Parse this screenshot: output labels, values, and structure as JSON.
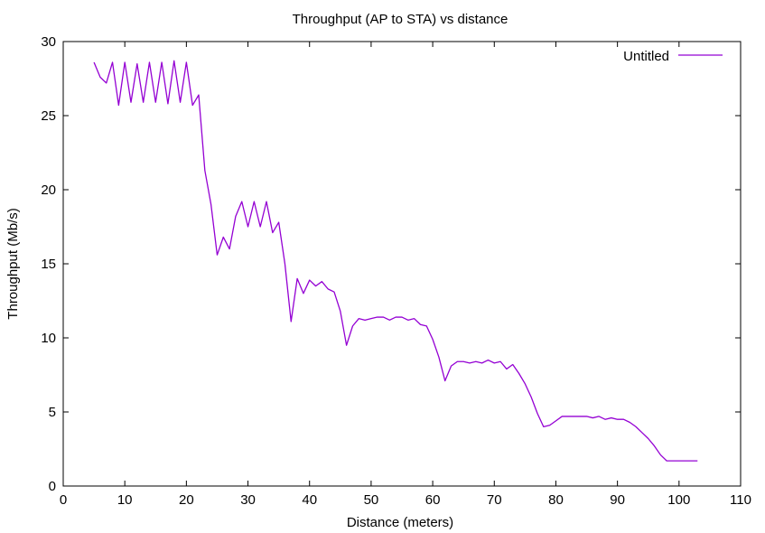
{
  "chart_data": {
    "type": "line",
    "title": "Throughput (AP to STA) vs distance",
    "xlabel": "Distance (meters)",
    "ylabel": "Throughput (Mb/s)",
    "xlim": [
      0,
      110
    ],
    "ylim": [
      0,
      30
    ],
    "xticks": [
      0,
      10,
      20,
      30,
      40,
      50,
      60,
      70,
      80,
      90,
      100,
      110
    ],
    "yticks": [
      0,
      5,
      10,
      15,
      20,
      25,
      30
    ],
    "grid": false,
    "legend_position": "top-right",
    "series": [
      {
        "name": "Untitled",
        "color": "#9400d3",
        "x": [
          5,
          6,
          7,
          8,
          9,
          10,
          11,
          12,
          13,
          14,
          15,
          16,
          17,
          18,
          19,
          20,
          21,
          22,
          23,
          24,
          25,
          26,
          27,
          28,
          29,
          30,
          31,
          32,
          33,
          34,
          35,
          36,
          37,
          38,
          39,
          40,
          41,
          42,
          43,
          44,
          45,
          46,
          47,
          48,
          49,
          50,
          51,
          52,
          53,
          54,
          55,
          56,
          57,
          58,
          59,
          60,
          61,
          62,
          63,
          64,
          65,
          66,
          67,
          68,
          69,
          70,
          71,
          72,
          73,
          74,
          75,
          76,
          77,
          78,
          79,
          80,
          81,
          82,
          83,
          84,
          85,
          86,
          87,
          88,
          89,
          90,
          91,
          92,
          93,
          94,
          95,
          96,
          97,
          98,
          99,
          100,
          101,
          102,
          103
        ],
        "y": [
          28.6,
          27.6,
          27.2,
          28.6,
          25.7,
          28.6,
          25.9,
          28.5,
          25.9,
          28.6,
          25.9,
          28.6,
          25.8,
          28.7,
          25.9,
          28.6,
          25.7,
          26.4,
          21.3,
          19.0,
          15.6,
          16.8,
          16.0,
          18.2,
          19.2,
          17.5,
          19.2,
          17.5,
          19.2,
          17.1,
          17.8,
          15.0,
          11.1,
          14.0,
          13.0,
          13.9,
          13.5,
          13.8,
          13.3,
          13.1,
          11.8,
          9.5,
          10.8,
          11.3,
          11.2,
          11.3,
          11.4,
          11.4,
          11.2,
          11.4,
          11.4,
          11.2,
          11.3,
          10.9,
          10.8,
          9.9,
          8.7,
          7.1,
          8.1,
          8.4,
          8.4,
          8.3,
          8.4,
          8.3,
          8.5,
          8.3,
          8.4,
          7.9,
          8.2,
          7.6,
          6.9,
          6.0,
          4.9,
          4.0,
          4.1,
          4.4,
          4.7,
          4.7,
          4.7,
          4.7,
          4.7,
          4.6,
          4.7,
          4.5,
          4.6,
          4.5,
          4.5,
          4.3,
          4.0,
          3.6,
          3.2,
          2.7,
          2.1,
          1.7,
          1.7,
          1.7,
          1.7,
          1.7,
          1.7
        ]
      }
    ]
  }
}
